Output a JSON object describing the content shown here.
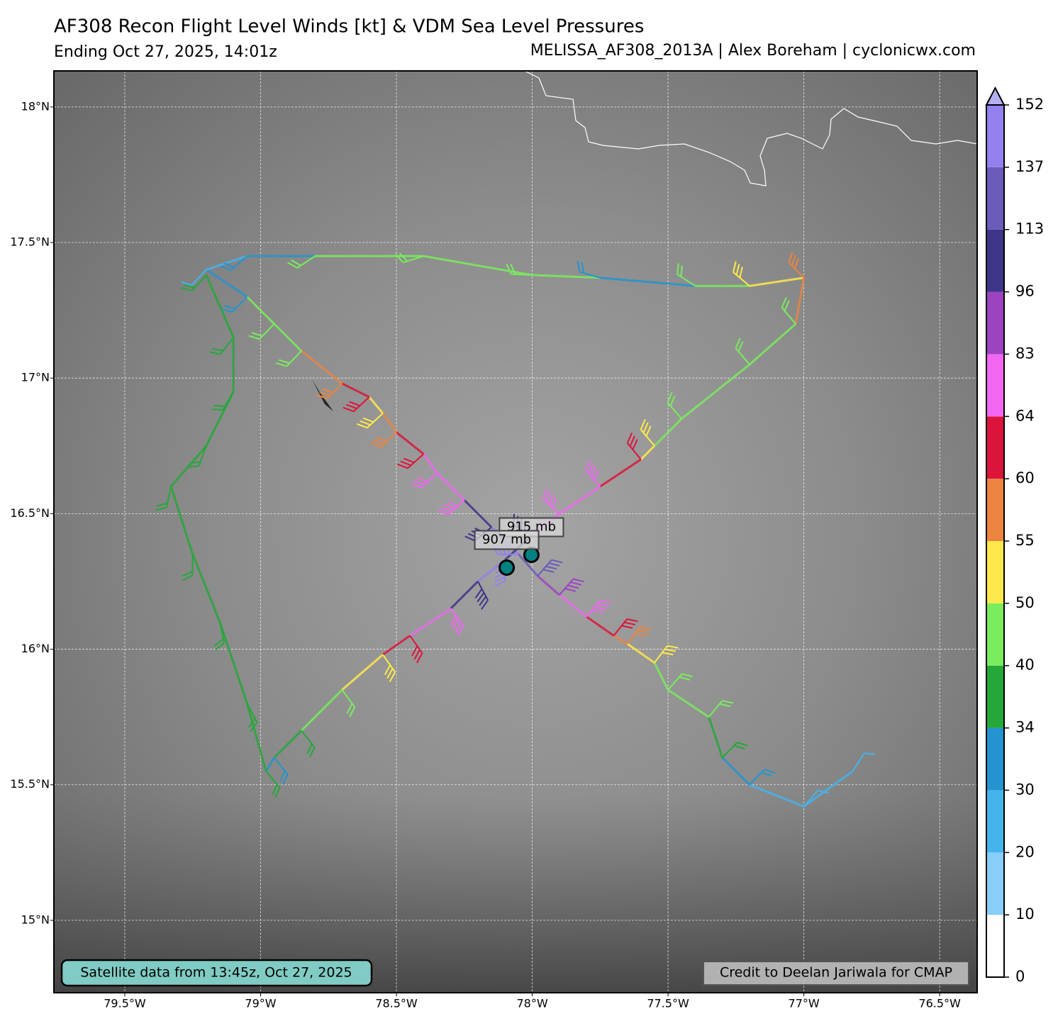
{
  "chart_data": {
    "type": "barbs",
    "title": "AF308 Recon Flight Level Winds [kt] & VDM Sea Level Pressures",
    "subtitle": "Ending Oct 27, 2025, 14:01z",
    "attribution": "MELISSA_AF308_2013A | Alex Boreham | cyclonicwx.com",
    "xlim": [
      -79.761,
      -76.362
    ],
    "ylim": [
      14.733,
      18.133
    ],
    "xticks": [
      {
        "value": -79.5,
        "label": "79.5°W"
      },
      {
        "value": -79,
        "label": "79°W"
      },
      {
        "value": -78.5,
        "label": "78.5°W"
      },
      {
        "value": -78,
        "label": "78°W"
      },
      {
        "value": -77.5,
        "label": "77.5°W"
      },
      {
        "value": -77,
        "label": "77°W"
      },
      {
        "value": -76.5,
        "label": "76.5°W"
      }
    ],
    "yticks": [
      {
        "value": 15,
        "label": "15°N"
      },
      {
        "value": 15.5,
        "label": "15.5°N"
      },
      {
        "value": 16,
        "label": "16°N"
      },
      {
        "value": 16.5,
        "label": "16.5°N"
      },
      {
        "value": 17,
        "label": "17°N"
      },
      {
        "value": 17.5,
        "label": "17.5°N"
      },
      {
        "value": 18,
        "label": "18°N"
      }
    ],
    "grid": true,
    "track": {
      "lon": [
        -76.82,
        -77.0,
        -77.2,
        -77.3,
        -77.35,
        -77.5,
        -77.55,
        -77.65,
        -77.7,
        -77.8,
        -77.9,
        -77.98,
        -78.05,
        -78.15,
        -78.25,
        -78.35,
        -78.4,
        -78.5,
        -78.55,
        -78.6,
        -78.7,
        -78.85,
        -78.95,
        -79.05,
        -79.2,
        -79.05,
        -78.8,
        -78.4,
        -78.0,
        -77.75,
        -77.4,
        -77.2,
        -77.0,
        -77.03,
        -77.2,
        -77.45,
        -77.55,
        -77.6,
        -77.75,
        -77.9,
        -78.0,
        -78.1,
        -78.2,
        -78.3,
        -78.45,
        -78.55,
        -78.7,
        -78.85,
        -78.95,
        -78.98,
        -79.05,
        -79.15,
        -79.25,
        -79.33,
        -79.2,
        -79.1,
        -79.1,
        -79.2
      ],
      "lat": [
        15.55,
        15.42,
        15.5,
        15.6,
        15.75,
        15.85,
        15.95,
        16.02,
        16.05,
        16.12,
        16.2,
        16.27,
        16.35,
        16.45,
        16.55,
        16.65,
        16.72,
        16.8,
        16.87,
        16.93,
        16.98,
        17.1,
        17.2,
        17.3,
        17.4,
        17.45,
        17.45,
        17.45,
        17.38,
        17.37,
        17.34,
        17.34,
        17.37,
        17.2,
        17.05,
        16.85,
        16.75,
        16.7,
        16.6,
        16.5,
        16.42,
        16.33,
        16.25,
        16.15,
        16.05,
        15.98,
        15.85,
        15.7,
        15.6,
        15.55,
        15.8,
        16.1,
        16.35,
        16.6,
        16.75,
        16.95,
        17.15,
        17.38
      ],
      "wind": [
        28,
        25,
        32,
        38,
        45,
        45,
        52,
        58,
        62,
        72,
        90,
        120,
        145,
        110,
        78,
        68,
        63,
        58,
        52,
        62,
        58,
        45,
        42,
        32,
        28,
        33,
        40,
        45,
        45,
        32,
        45,
        52,
        57,
        45,
        45,
        45,
        52,
        62,
        70,
        80,
        100,
        140,
        100,
        75,
        62,
        52,
        45,
        38,
        32,
        38,
        38,
        38,
        38,
        38,
        38,
        38,
        38,
        35
      ]
    },
    "vdm": [
      {
        "lon": -78.003,
        "lat": 16.348,
        "pressure": 915,
        "label": "915 mb"
      },
      {
        "lon": -78.094,
        "lat": 16.301,
        "pressure": 907,
        "label": "907 mb"
      }
    ],
    "colorbar": {
      "levels": [
        0,
        10,
        20,
        30,
        34,
        40,
        50,
        55,
        60,
        64,
        83,
        96,
        113,
        137,
        152
      ],
      "colors": [
        "#ffffff",
        "#87cefa",
        "#45b4ec",
        "#2394cf",
        "#24a83a",
        "#7aec5d",
        "#ffe94a",
        "#ec8440",
        "#dc143c",
        "#f266f2",
        "#9c44c0",
        "#3d3588",
        "#6a5cb8",
        "#9480ee"
      ],
      "extend_color": "#b4aef2"
    },
    "satellite_note": "Satellite data from 13:45z, Oct 27, 2025",
    "credit_note": "Credit to Deelan Jariwala for CMAP"
  }
}
